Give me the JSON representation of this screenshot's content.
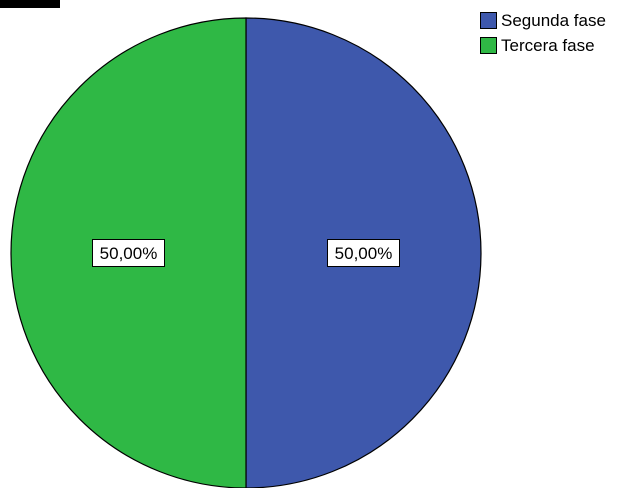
{
  "chart_data": {
    "type": "pie",
    "title": "",
    "slices": [
      {
        "label": "Segunda fase",
        "value": 50.0,
        "display": "50,00%",
        "color": "#3E58AC"
      },
      {
        "label": "Tercera fase",
        "value": 50.0,
        "display": "50,00%",
        "color": "#2FB845"
      }
    ],
    "legend": {
      "placement": "top-right",
      "entries": [
        {
          "label": "Segunda fase",
          "color": "#3E58AC"
        },
        {
          "label": "Tercera fase",
          "color": "#2FB845"
        }
      ]
    },
    "start_angle": "12 o'clock",
    "direction": "clockwise"
  }
}
